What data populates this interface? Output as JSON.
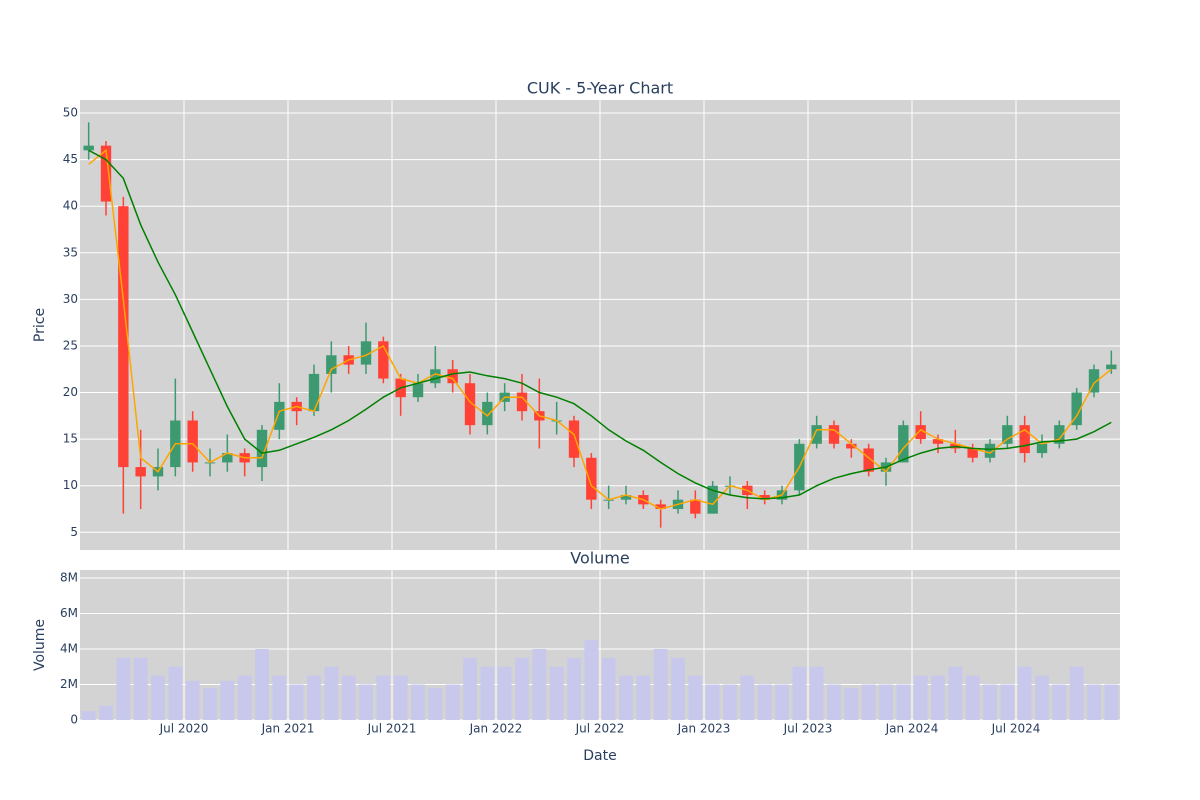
{
  "chart_data": {
    "type": "candlestick",
    "title": "CUK - 5-Year Chart",
    "subplot_title": "Volume",
    "x_label": "Date",
    "y_label": "Price",
    "y2_label": "Volume",
    "x": [
      "2020-01",
      "2020-02",
      "2020-03",
      "2020-04",
      "2020-05",
      "2020-06",
      "2020-07",
      "2020-08",
      "2020-09",
      "2020-10",
      "2020-11",
      "2020-12",
      "2021-01",
      "2021-02",
      "2021-03",
      "2021-04",
      "2021-05",
      "2021-06",
      "2021-07",
      "2021-08",
      "2021-09",
      "2021-10",
      "2021-11",
      "2021-12",
      "2022-01",
      "2022-02",
      "2022-03",
      "2022-04",
      "2022-05",
      "2022-06",
      "2022-07",
      "2022-08",
      "2022-09",
      "2022-10",
      "2022-11",
      "2022-12",
      "2023-01",
      "2023-02",
      "2023-03",
      "2023-04",
      "2023-05",
      "2023-06",
      "2023-07",
      "2023-08",
      "2023-09",
      "2023-10",
      "2023-11",
      "2023-12",
      "2024-01",
      "2024-02",
      "2024-03",
      "2024-04",
      "2024-05",
      "2024-06",
      "2024-07",
      "2024-08",
      "2024-09",
      "2024-10",
      "2024-11",
      "2024-12"
    ],
    "open": [
      46,
      46.5,
      40,
      12,
      11,
      12,
      17,
      12.5,
      12.5,
      13.5,
      12,
      16,
      19,
      18,
      22,
      24,
      23,
      25.5,
      21.5,
      19.5,
      21,
      22.5,
      21,
      16.5,
      19,
      20,
      18,
      17,
      17,
      13,
      8.5,
      8.5,
      9,
      8,
      7.5,
      8.5,
      7,
      10,
      10,
      9,
      8.5,
      9.5,
      14.5,
      16.5,
      14.5,
      14,
      11.5,
      12.5,
      16.5,
      15,
      14.5,
      14,
      13,
      14.5,
      16.5,
      13.5,
      14.5,
      16.5,
      20,
      22.5
    ],
    "high": [
      49,
      47,
      41,
      16,
      14,
      21.5,
      18,
      14,
      15.5,
      14,
      16.5,
      21,
      19.5,
      23,
      25.5,
      25,
      27.5,
      26,
      22,
      22,
      25,
      23.5,
      22,
      20,
      21,
      22,
      21.5,
      19,
      17.5,
      13.5,
      10,
      10,
      9.5,
      8.5,
      9.5,
      9.5,
      10.5,
      11,
      10.5,
      9.5,
      10,
      15,
      17.5,
      17,
      15,
      14.5,
      13,
      17,
      18,
      15.5,
      16,
      14.5,
      15,
      17.5,
      17.5,
      15.5,
      17,
      20.5,
      23,
      24.5
    ],
    "low": [
      45,
      39,
      7,
      7.5,
      9.5,
      11,
      11.5,
      11,
      11.5,
      11,
      10.5,
      15,
      16.5,
      17.5,
      20,
      22,
      22,
      21,
      17.5,
      19,
      20.5,
      20,
      15.5,
      15.5,
      18,
      17,
      14,
      15.5,
      12,
      7.5,
      7.5,
      8,
      7.5,
      5.5,
      7,
      6.5,
      7,
      9,
      7.5,
      8,
      8,
      9,
      14,
      14,
      13,
      11,
      10,
      12.5,
      14.5,
      13.5,
      13.5,
      12.5,
      12.5,
      14,
      12.5,
      13,
      14,
      16,
      19.5,
      22
    ],
    "close": [
      46.5,
      40.5,
      12,
      11,
      12,
      17,
      12.5,
      12.5,
      13.5,
      12.5,
      16,
      19,
      18,
      22,
      24,
      23,
      25.5,
      21.5,
      19.5,
      21,
      22.5,
      21,
      16.5,
      19,
      20,
      18,
      17,
      17,
      13,
      8.5,
      8.5,
      9,
      8,
      7.5,
      8.5,
      7,
      10,
      10,
      9,
      8.5,
      9.5,
      14.5,
      16.5,
      14.5,
      14,
      11.5,
      12.5,
      16.5,
      15,
      14.5,
      14,
      13,
      14.5,
      16.5,
      13.5,
      14.5,
      16.5,
      20,
      22.5,
      23
    ],
    "increasing_color": "#3d9970",
    "decreasing_color": "#ff4136",
    "lines": [
      {
        "color": "#ffa500",
        "values": [
          44.5,
          46,
          30,
          13,
          11.5,
          14.5,
          14.5,
          12.5,
          13.5,
          13,
          13,
          18,
          18.5,
          18,
          22.5,
          23.5,
          24,
          25,
          21.5,
          21,
          22,
          21.5,
          19,
          17.5,
          19.5,
          19.5,
          17.5,
          17,
          15.5,
          10,
          8.5,
          9,
          8.5,
          7.5,
          8,
          8.5,
          8,
          10,
          9.5,
          8.5,
          9,
          12,
          16,
          16,
          14.5,
          13,
          11.5,
          14,
          16,
          15,
          14.5,
          14,
          13.5,
          15,
          16,
          14.5,
          15,
          17.5,
          21,
          22.5
        ]
      },
      {
        "color": "#008000",
        "values": [
          46,
          45,
          43,
          38,
          34,
          30.5,
          26.5,
          22.5,
          18.5,
          15,
          13.5,
          13.8,
          14.5,
          15.2,
          16,
          17,
          18.2,
          19.5,
          20.5,
          21,
          21.5,
          22,
          22.2,
          21.8,
          21.5,
          21,
          20,
          19.5,
          18.8,
          17.5,
          16,
          14.8,
          13.8,
          12.5,
          11.3,
          10.3,
          9.5,
          9,
          8.7,
          8.6,
          8.7,
          9,
          10,
          10.8,
          11.3,
          11.7,
          12,
          12.8,
          13.5,
          14,
          14.2,
          14,
          13.9,
          14,
          14.3,
          14.7,
          14.8,
          15,
          15.8,
          16.8
        ]
      }
    ],
    "volume": [
      500000,
      800000,
      3500000,
      3500000,
      2500000,
      3000000,
      2200000,
      1800000,
      2200000,
      2500000,
      4000000,
      2500000,
      2000000,
      2500000,
      3000000,
      2500000,
      2000000,
      2500000,
      2500000,
      2000000,
      1800000,
      2000000,
      3500000,
      3000000,
      3000000,
      3500000,
      4000000,
      3000000,
      3500000,
      4500000,
      3500000,
      2500000,
      2500000,
      4000000,
      3500000,
      2500000,
      2000000,
      2000000,
      2500000,
      2000000,
      2000000,
      3000000,
      3000000,
      2000000,
      1800000,
      2000000,
      2000000,
      2000000,
      2500000,
      2500000,
      3000000,
      2500000,
      2000000,
      2000000,
      3000000,
      2500000,
      2000000,
      3000000,
      2000000,
      2000000
    ],
    "volume_color": "#c8c8ec",
    "xlim": [
      "2020-01",
      "2024-12"
    ],
    "xticks": [
      {
        "value": "2020-07",
        "label": "Jul 2020"
      },
      {
        "value": "2021-01",
        "label": "Jan 2021"
      },
      {
        "value": "2021-07",
        "label": "Jul 2021"
      },
      {
        "value": "2022-01",
        "label": "Jan 2022"
      },
      {
        "value": "2022-07",
        "label": "Jul 2022"
      },
      {
        "value": "2023-01",
        "label": "Jan 2023"
      },
      {
        "value": "2023-07",
        "label": "Jul 2023"
      },
      {
        "value": "2024-01",
        "label": "Jan 2024"
      },
      {
        "value": "2024-07",
        "label": "Jul 2024"
      }
    ],
    "ylim": [
      3.1,
      51.4
    ],
    "yticks": [
      5,
      10,
      15,
      20,
      25,
      30,
      35,
      40,
      45,
      50
    ],
    "y2lim": [
      0,
      8450000
    ],
    "y2ticks": [
      0,
      {
        "value": 2000000,
        "label": "2M"
      },
      {
        "value": 4000000,
        "label": "4M"
      },
      {
        "value": 6000000,
        "label": "6M"
      },
      {
        "value": 8000000,
        "label": "8M"
      }
    ],
    "grid": true
  }
}
